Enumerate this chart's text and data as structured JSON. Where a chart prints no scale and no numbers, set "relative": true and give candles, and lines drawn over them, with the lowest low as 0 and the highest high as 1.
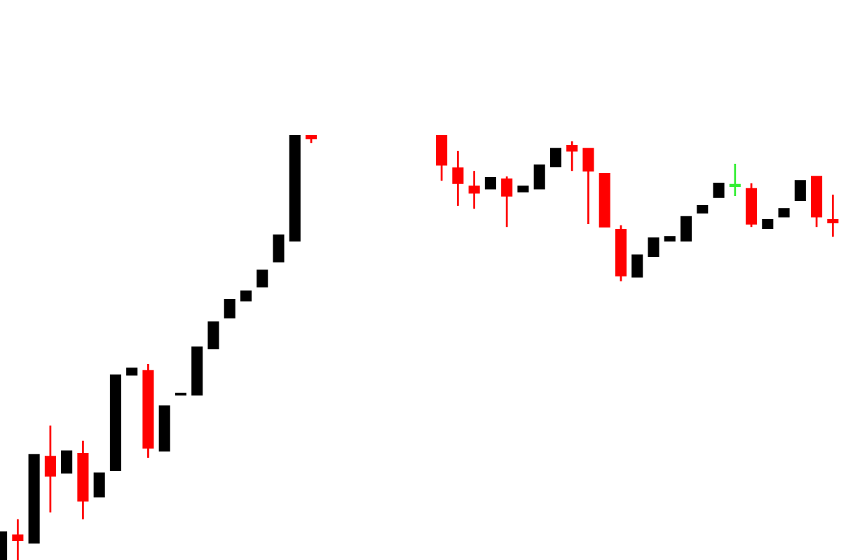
{
  "chart_data": {
    "type": "candlestick",
    "relative": true,
    "categories": [
      null,
      null,
      null,
      null,
      null,
      null,
      null,
      null,
      null,
      null,
      null,
      null,
      null,
      null,
      null,
      null,
      null,
      null,
      null,
      null,
      null,
      null,
      null,
      null,
      null,
      null,
      null,
      null,
      null,
      null,
      null,
      null,
      null,
      null,
      null,
      null,
      null,
      null,
      null,
      null,
      null,
      null,
      null,
      null,
      null,
      null,
      null,
      null,
      null,
      null,
      null,
      null
    ],
    "ohlc": [
      [
        0,
        0.066,
        0,
        0.066
      ],
      [
        0.059,
        0.096,
        0,
        0.046
      ],
      [
        0.04,
        0.248,
        0.04,
        0.248
      ],
      [
        0.244,
        0.317,
        0.112,
        0.198
      ],
      [
        0.205,
        0.257,
        0.205,
        0.257
      ],
      [
        0.251,
        0.281,
        0.096,
        0.139
      ],
      [
        0.149,
        0.205,
        0.149,
        0.205
      ],
      [
        0.211,
        0.436,
        0.211,
        0.436
      ],
      [
        0.436,
        0.452,
        0.436,
        0.452
      ],
      [
        0.446,
        0.462,
        0.241,
        0.264
      ],
      [
        0.257,
        0.363,
        0.257,
        0.363
      ],
      [
        0.389,
        0.393,
        0.389,
        0.393
      ],
      [
        0.389,
        0.502,
        0.389,
        0.502
      ],
      [
        0.498,
        0.561,
        0.498,
        0.561
      ],
      [
        0.571,
        0.614,
        0.571,
        0.614
      ],
      [
        0.611,
        0.634,
        0.611,
        0.634
      ],
      [
        0.644,
        0.683,
        0.644,
        0.683
      ],
      [
        0.703,
        0.766,
        0.703,
        0.766
      ],
      [
        0.752,
        1,
        0.752,
        1
      ],
      [
        1,
        1,
        0.983,
        0.993
      ],
      null,
      null,
      null,
      null,
      null,
      null,
      null,
      [
        1,
        1,
        0.894,
        0.931
      ],
      [
        0.924,
        0.964,
        0.835,
        0.888
      ],
      [
        0.881,
        0.917,
        0.828,
        0.865
      ],
      [
        0.875,
        0.901,
        0.875,
        0.901
      ],
      [
        0.898,
        0.904,
        0.785,
        0.858
      ],
      [
        0.868,
        0.881,
        0.868,
        0.881
      ],
      [
        0.875,
        0.931,
        0.875,
        0.931
      ],
      [
        0.927,
        0.97,
        0.927,
        0.97
      ],
      [
        0.977,
        0.987,
        0.917,
        0.964
      ],
      [
        0.97,
        0.97,
        0.792,
        0.917
      ],
      [
        0.911,
        0.911,
        0.785,
        0.785
      ],
      [
        0.779,
        0.789,
        0.657,
        0.67
      ],
      [
        0.667,
        0.719,
        0.667,
        0.719
      ],
      [
        0.716,
        0.759,
        0.716,
        0.759
      ],
      [
        0.752,
        0.762,
        0.752,
        0.762
      ],
      [
        0.752,
        0.809,
        0.752,
        0.809
      ],
      [
        0.818,
        0.835,
        0.818,
        0.835
      ],
      [
        0.855,
        0.888,
        0.855,
        0.888
      ],
      [
        0.881,
        0.934,
        0.858,
        0.881
      ],
      [
        0.875,
        0.888,
        0.785,
        0.792
      ],
      [
        0.782,
        0.802,
        0.782,
        0.802
      ],
      [
        0.809,
        0.828,
        0.809,
        0.828
      ],
      [
        0.848,
        0.894,
        0.848,
        0.894
      ],
      [
        0.904,
        0.904,
        0.785,
        0.809
      ],
      [
        0.802,
        0.861,
        0.762,
        0.795
      ]
    ],
    "colors": [
      "#000000",
      "#ff0000",
      "#000000",
      "#ff0000",
      "#000000",
      "#ff0000",
      "#000000",
      "#000000",
      "#000000",
      "#ff0000",
      "#000000",
      "#000000",
      "#000000",
      "#000000",
      "#000000",
      "#000000",
      "#000000",
      "#000000",
      "#000000",
      "#ff0000",
      null,
      null,
      null,
      null,
      null,
      null,
      null,
      "#ff0000",
      "#ff0000",
      "#ff0000",
      "#000000",
      "#ff0000",
      "#000000",
      "#000000",
      "#000000",
      "#ff0000",
      "#ff0000",
      "#ff0000",
      "#ff0000",
      "#000000",
      "#000000",
      "#000000",
      "#000000",
      "#000000",
      "#000000",
      "#33ee33",
      "#ff0000",
      "#000000",
      "#000000",
      "#000000",
      "#ff0000",
      "#ff0000"
    ],
    "grid": false
  }
}
